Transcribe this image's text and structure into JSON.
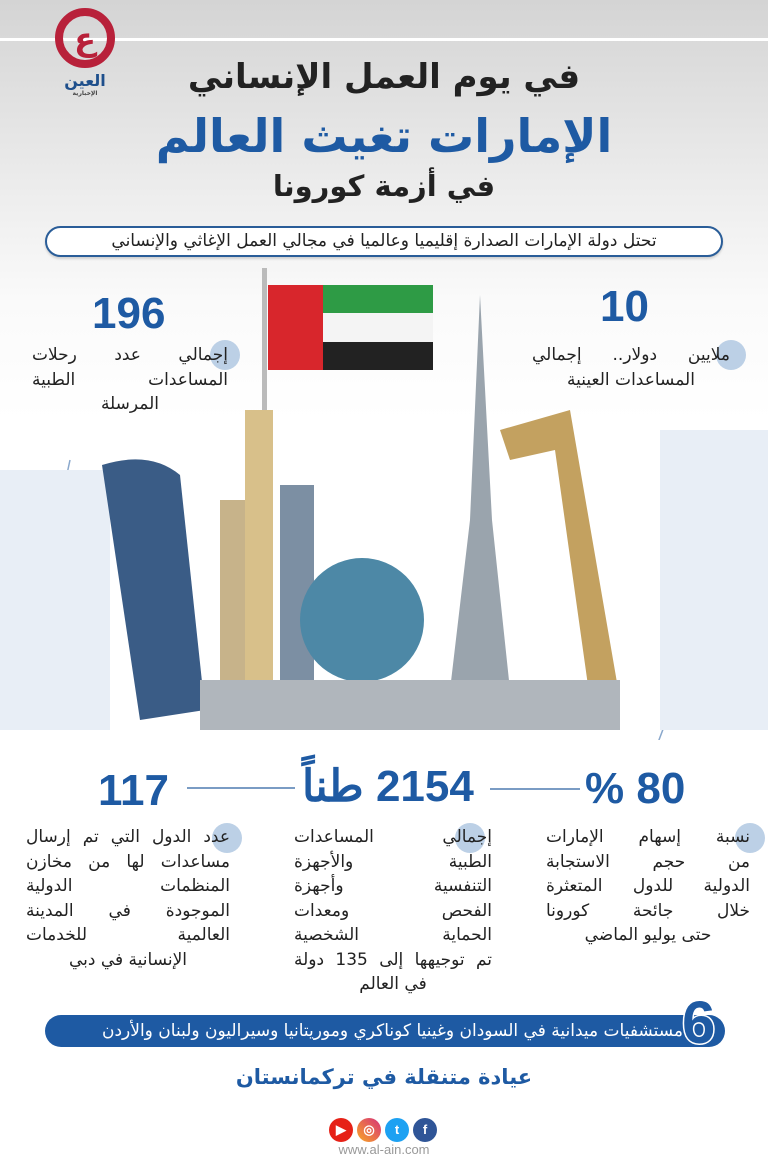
{
  "colors": {
    "accent": "#1e5aa3",
    "logo": "#b8213a",
    "text": "#222222"
  },
  "logo": {
    "text": "العين",
    "sub": "الإخبارية"
  },
  "header": {
    "line1": "في يوم العمل الإنساني",
    "line2": "الإمارات تغيث العالم",
    "line3": "في أزمة كورونا"
  },
  "intro": "تحتل دولة الإمارات الصدارة إقليميا وعالميا في مجالي العمل الإغاثي والإنساني",
  "stats_top": [
    {
      "value": "196",
      "lines": [
        "إجمالي عدد رحلات",
        "المساعدات الطبية",
        "المرسلة"
      ]
    },
    {
      "value": "10",
      "lines": [
        "ملايين دولار.. إجمالي",
        "المساعدات العينية"
      ]
    }
  ],
  "stats_bottom": [
    {
      "value": "% 80",
      "lines": [
        "نسبة إسهام الإمارات",
        "من حجم الاستجابة",
        "الدولية للدول المتعثرة",
        "خلال جائحة كورونا",
        "حتى يوليو الماضي"
      ]
    },
    {
      "value": "2154 طناً",
      "lines": [
        "إجمالي المساعدات",
        "الطبية والأجهزة",
        "التنفسية وأجهزة",
        "الفحص ومعدات",
        "الحماية الشخصية",
        "تم توجيهها إلى 135 دولة",
        "في العالم"
      ]
    },
    {
      "value": "117",
      "lines": [
        "عدد الدول التي تم إرسال",
        "مساعدات لها من مخازن",
        "المنظمات الدولية",
        "الموجودة في المدينة",
        "العالمية للخدمات",
        "الإنسانية في دبي"
      ]
    }
  ],
  "hospitals": {
    "number": "6",
    "text": "مستشفيات ميدانية في السودان وغينيا كوناكري وموريتانيا وسيراليون ولبنان والأردن"
  },
  "clinic": "عيادة متنقلة في تركمانستان",
  "social": [
    {
      "icon": "youtube-icon",
      "color": "#e62117"
    },
    {
      "icon": "instagram-icon",
      "color": "#d6307a"
    },
    {
      "icon": "twitter-icon",
      "color": "#1da1f2"
    },
    {
      "icon": "facebook-icon",
      "color": "#2f5597"
    }
  ],
  "footer_url": "www.al-ain.com"
}
